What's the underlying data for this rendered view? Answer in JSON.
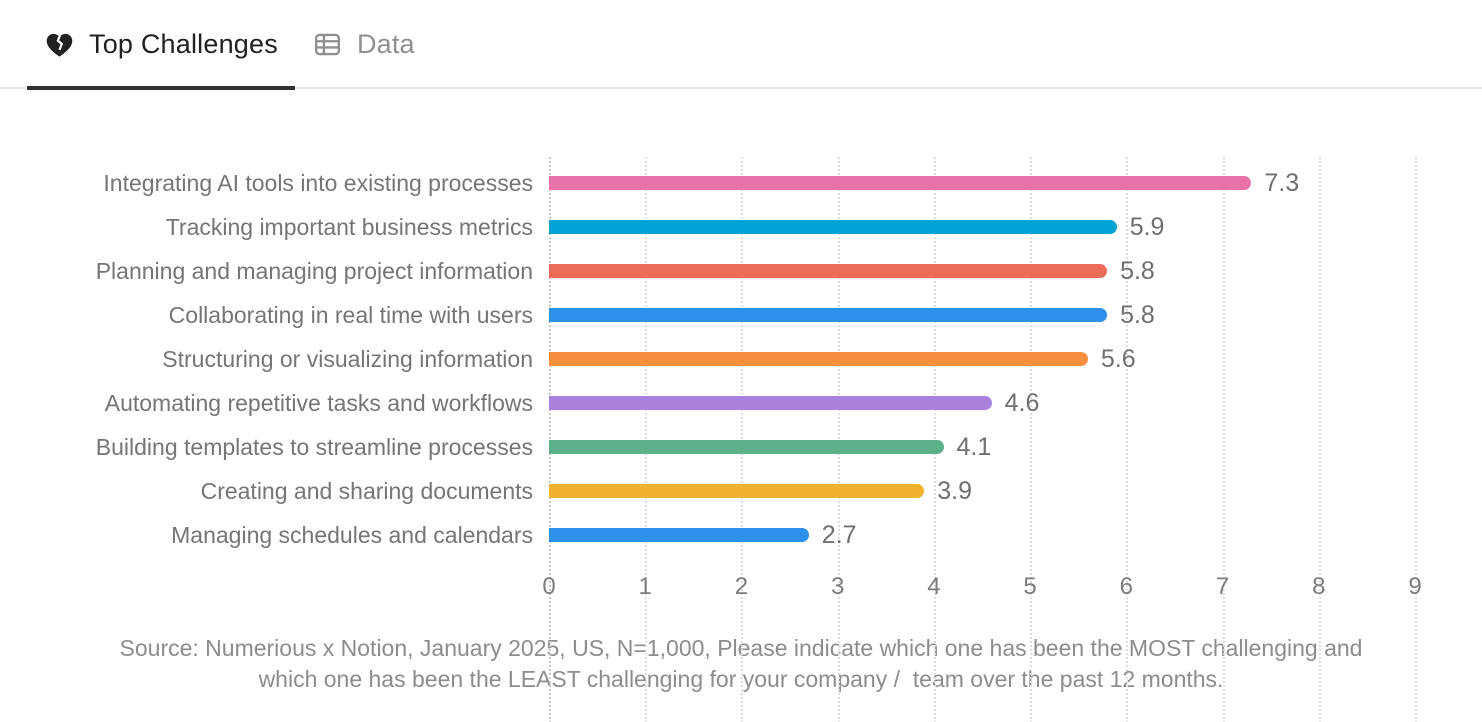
{
  "tabs": [
    {
      "label": "Top Challenges",
      "icon": "broken-heart-icon",
      "active": true
    },
    {
      "label": "Data",
      "icon": "table-icon",
      "active": false
    }
  ],
  "chart_data": {
    "type": "bar",
    "orientation": "horizontal",
    "categories": [
      "Integrating AI tools into existing processes",
      "Tracking important business metrics",
      "Planning and managing project information",
      "Collaborating in real time with users",
      "Structuring or visualizing information",
      "Automating repetitive tasks and workflows",
      "Building templates to streamline processes",
      "Creating and sharing documents",
      "Managing schedules and calendars"
    ],
    "values": [
      7.3,
      5.9,
      5.8,
      5.8,
      5.6,
      4.6,
      4.1,
      3.9,
      2.7
    ],
    "bar_colors": [
      "#e973a9",
      "#00a2d4",
      "#ec6b59",
      "#2d90ea",
      "#f68e3e",
      "#aa82de",
      "#5cb18b",
      "#f0b22f",
      "#2d90ea"
    ],
    "value_labels": [
      "7.3",
      "5.9",
      "5.8",
      "5.8",
      "5.6",
      "4.6",
      "4.1",
      "3.9",
      "2.7"
    ],
    "xlim": [
      0,
      9
    ],
    "xticks": [
      "0",
      "1",
      "2",
      "3",
      "4",
      "5",
      "6",
      "7",
      "8",
      "9"
    ],
    "grid": "vertical-dotted",
    "legend": "none",
    "title": "",
    "xlabel": "",
    "ylabel": ""
  },
  "source": {
    "line1": "Source: Numerious x Notion, January 2025, US, N=1,000, Please indicate which one has been the MOST challenging and",
    "line2": "which one has been the LEAST challenging for your company /  team over the past 12 months."
  },
  "colors": {
    "active_tab_text": "#212121",
    "inactive_tab_text": "#8f8f8f",
    "active_underline": "#2e2e33",
    "category_label": "#757575",
    "value_label": "#6f6f6f",
    "tick_label": "#7b7b7b",
    "source_text": "#8c8c8c",
    "gridline": "#dcdee0"
  }
}
